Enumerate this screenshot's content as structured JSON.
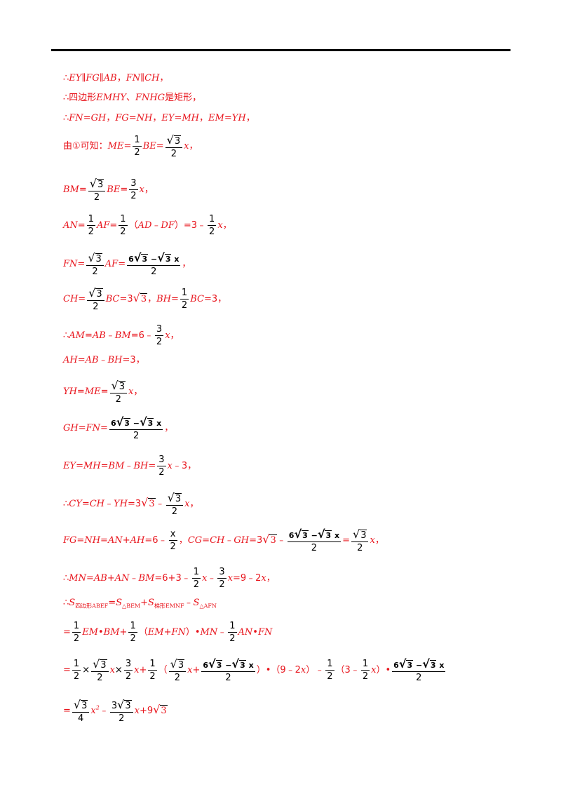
{
  "lines": [
    "∴EY∥FG∥AB，FN∥CH，",
    "∴四边形EMHY、FNHG是矩形，",
    "∴FN=GH，FG=NH，EY=MH，EM=YH，",
    "由①可知：ME=1/2BE=√3/2x，",
    "BM=√3/2BE=3/2x，",
    "AN=1/2AF=1/2（AD﹣DF）=3﹣1/2x，",
    "FN=√3/2AF=(6√3−√3x)/2，",
    "CH=√3/2BC=3√3，BH=1/2BC=3，",
    "∴AM=AB﹣BM=6﹣3/2x，",
    "AH=AB﹣BH=3，",
    "YH=ME=√3/2x，",
    "GH=FN=(6√3−√3x)/2，",
    "EY=MH=BM﹣BH=3/2x﹣3，",
    "∴CY=CH﹣YH=3√3﹣√3/2x，",
    "FG=NH=AN+AH=6﹣x/2，CG=CH﹣GH=3√3﹣(6√3−√3x)/2=√3/2x，",
    "∴MN=AB+AN﹣BM=6+3﹣1/2x﹣3/2x=9﹣2x，",
    "∴S四边形ABEF=S△BEM+S梯形EMNF﹣S△AFN",
    "=1/2EM•BM+1/2（EM+FN）•MN﹣1/2AN•FN",
    "=1/2×√3/2x×3/2x+1/2（√3/2x+(6√3−√3x)/2）•（9﹣2x）﹣1/2（3﹣1/2x）•(6√3−√3x)/2",
    "=√3/4x²﹣3√3/2x+9√3"
  ]
}
